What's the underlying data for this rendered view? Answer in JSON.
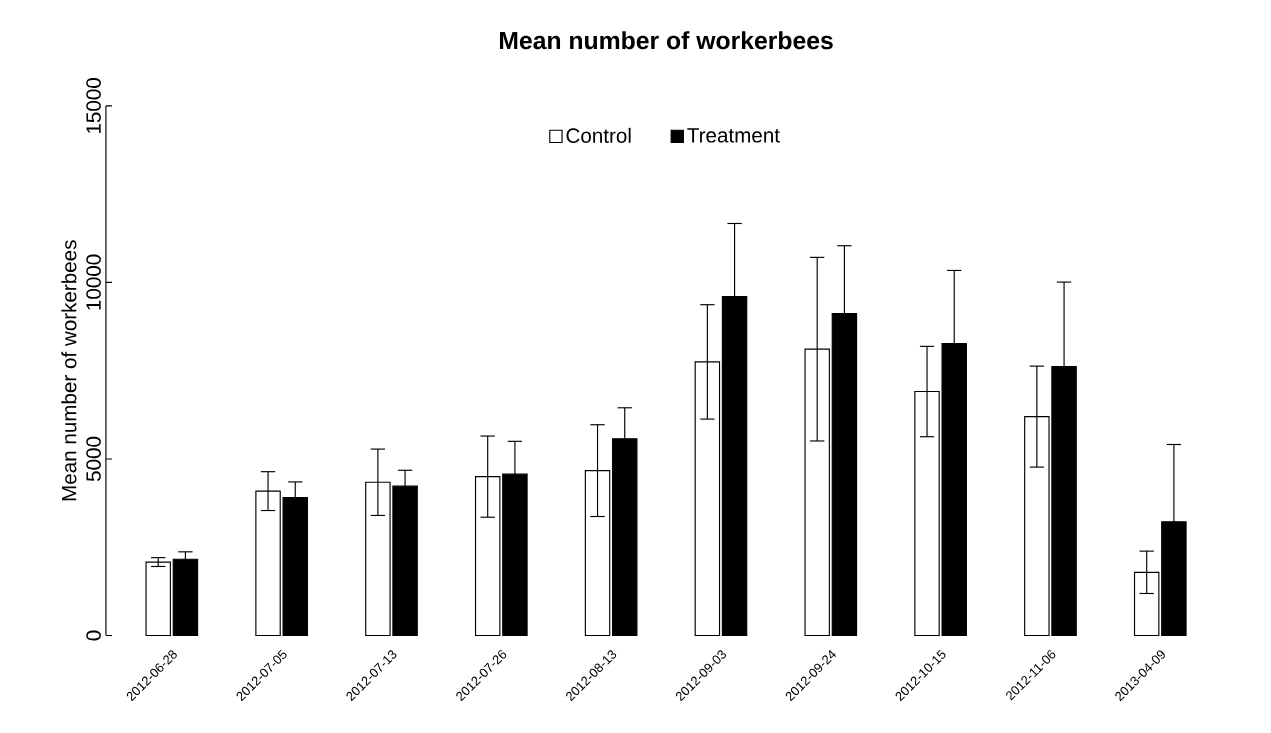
{
  "chart_data": {
    "type": "bar",
    "title": "Mean number of workerbees",
    "ylabel": "Mean number of workerbees",
    "categories": [
      "2012-06-28",
      "2012-07-05",
      "2012-07-13",
      "2012-07-26",
      "2012-08-13",
      "2012-09-03",
      "2012-09-24",
      "2012-10-15",
      "2012-11-06",
      "2013-04-09"
    ],
    "series": [
      {
        "name": "Control",
        "color": "#ffffff",
        "values": [
          2080,
          4090,
          4340,
          4500,
          4670,
          7750,
          8110,
          6910,
          6200,
          1790
        ],
        "errors": [
          125,
          550,
          940,
          1150,
          1300,
          1620,
          2600,
          1280,
          1430,
          600
        ]
      },
      {
        "name": "Treatment",
        "color": "#000000",
        "values": [
          2160,
          3910,
          4230,
          4570,
          5570,
          9600,
          9120,
          8270,
          7620,
          3220
        ],
        "errors": [
          210,
          440,
          450,
          930,
          880,
          2070,
          1920,
          2070,
          2390,
          2190
        ]
      }
    ],
    "ylim": [
      0,
      15000
    ],
    "yticks": [
      0,
      5000,
      10000,
      15000
    ],
    "grid": false,
    "legend": "top"
  }
}
